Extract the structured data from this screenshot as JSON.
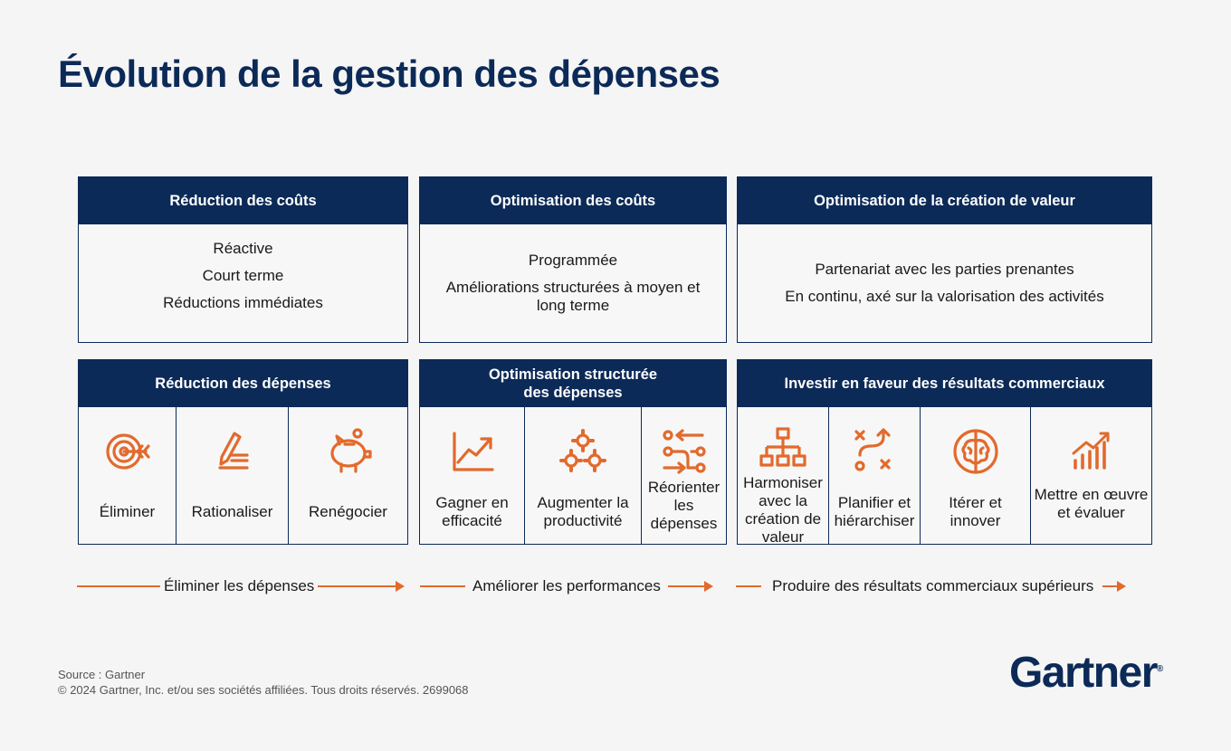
{
  "title": "Évolution de la gestion des dépenses",
  "accent_color": "#e26a2c",
  "navy_color": "#0c2a57",
  "row1": [
    {
      "header": "Réduction des coûts",
      "lines": [
        "Réactive",
        "Court terme",
        "Réductions immédiates"
      ]
    },
    {
      "header": "Optimisation des coûts",
      "lines": [
        "Programmée",
        "Améliorations structurées à moyen et long terme"
      ]
    },
    {
      "header": "Optimisation de la création de valeur",
      "lines": [
        "Partenariat avec les parties prenantes",
        "En continu, axé sur la valorisation des activités"
      ]
    }
  ],
  "row2": [
    {
      "header": "Réduction des dépenses",
      "items": [
        {
          "icon": "target-icon",
          "label": "Éliminer"
        },
        {
          "icon": "pen-list-icon",
          "label": "Rationaliser"
        },
        {
          "icon": "piggy-bank-icon",
          "label": "Renégocier"
        }
      ]
    },
    {
      "header": "Optimisation structurée des dépenses",
      "items": [
        {
          "icon": "trend-up-icon",
          "label": "Gagner en efficacité"
        },
        {
          "icon": "gears-icon",
          "label": "Augmenter la productivité"
        },
        {
          "icon": "redirect-arrows-icon",
          "label": "Réorienter les dépenses"
        }
      ]
    },
    {
      "header": "Investir en faveur des résultats commerciaux",
      "items": [
        {
          "icon": "org-chart-icon",
          "label": "Harmoniser avec la création de valeur"
        },
        {
          "icon": "strategy-icon",
          "label": "Planifier et hiérarchiser"
        },
        {
          "icon": "brain-icon",
          "label": "Itérer et innover"
        },
        {
          "icon": "bar-chart-icon",
          "label": "Mettre en œuvre et évaluer"
        }
      ]
    }
  ],
  "arrows": [
    "Éliminer les dépenses",
    "Améliorer les performances",
    "Produire des résultats commerciaux supérieurs"
  ],
  "footer": {
    "source": "Source : Gartner",
    "copyright": "© 2024 Gartner, Inc. et/ou ses sociétés affiliées. Tous droits réservés. 2699068"
  },
  "logo_text": "Gartner"
}
